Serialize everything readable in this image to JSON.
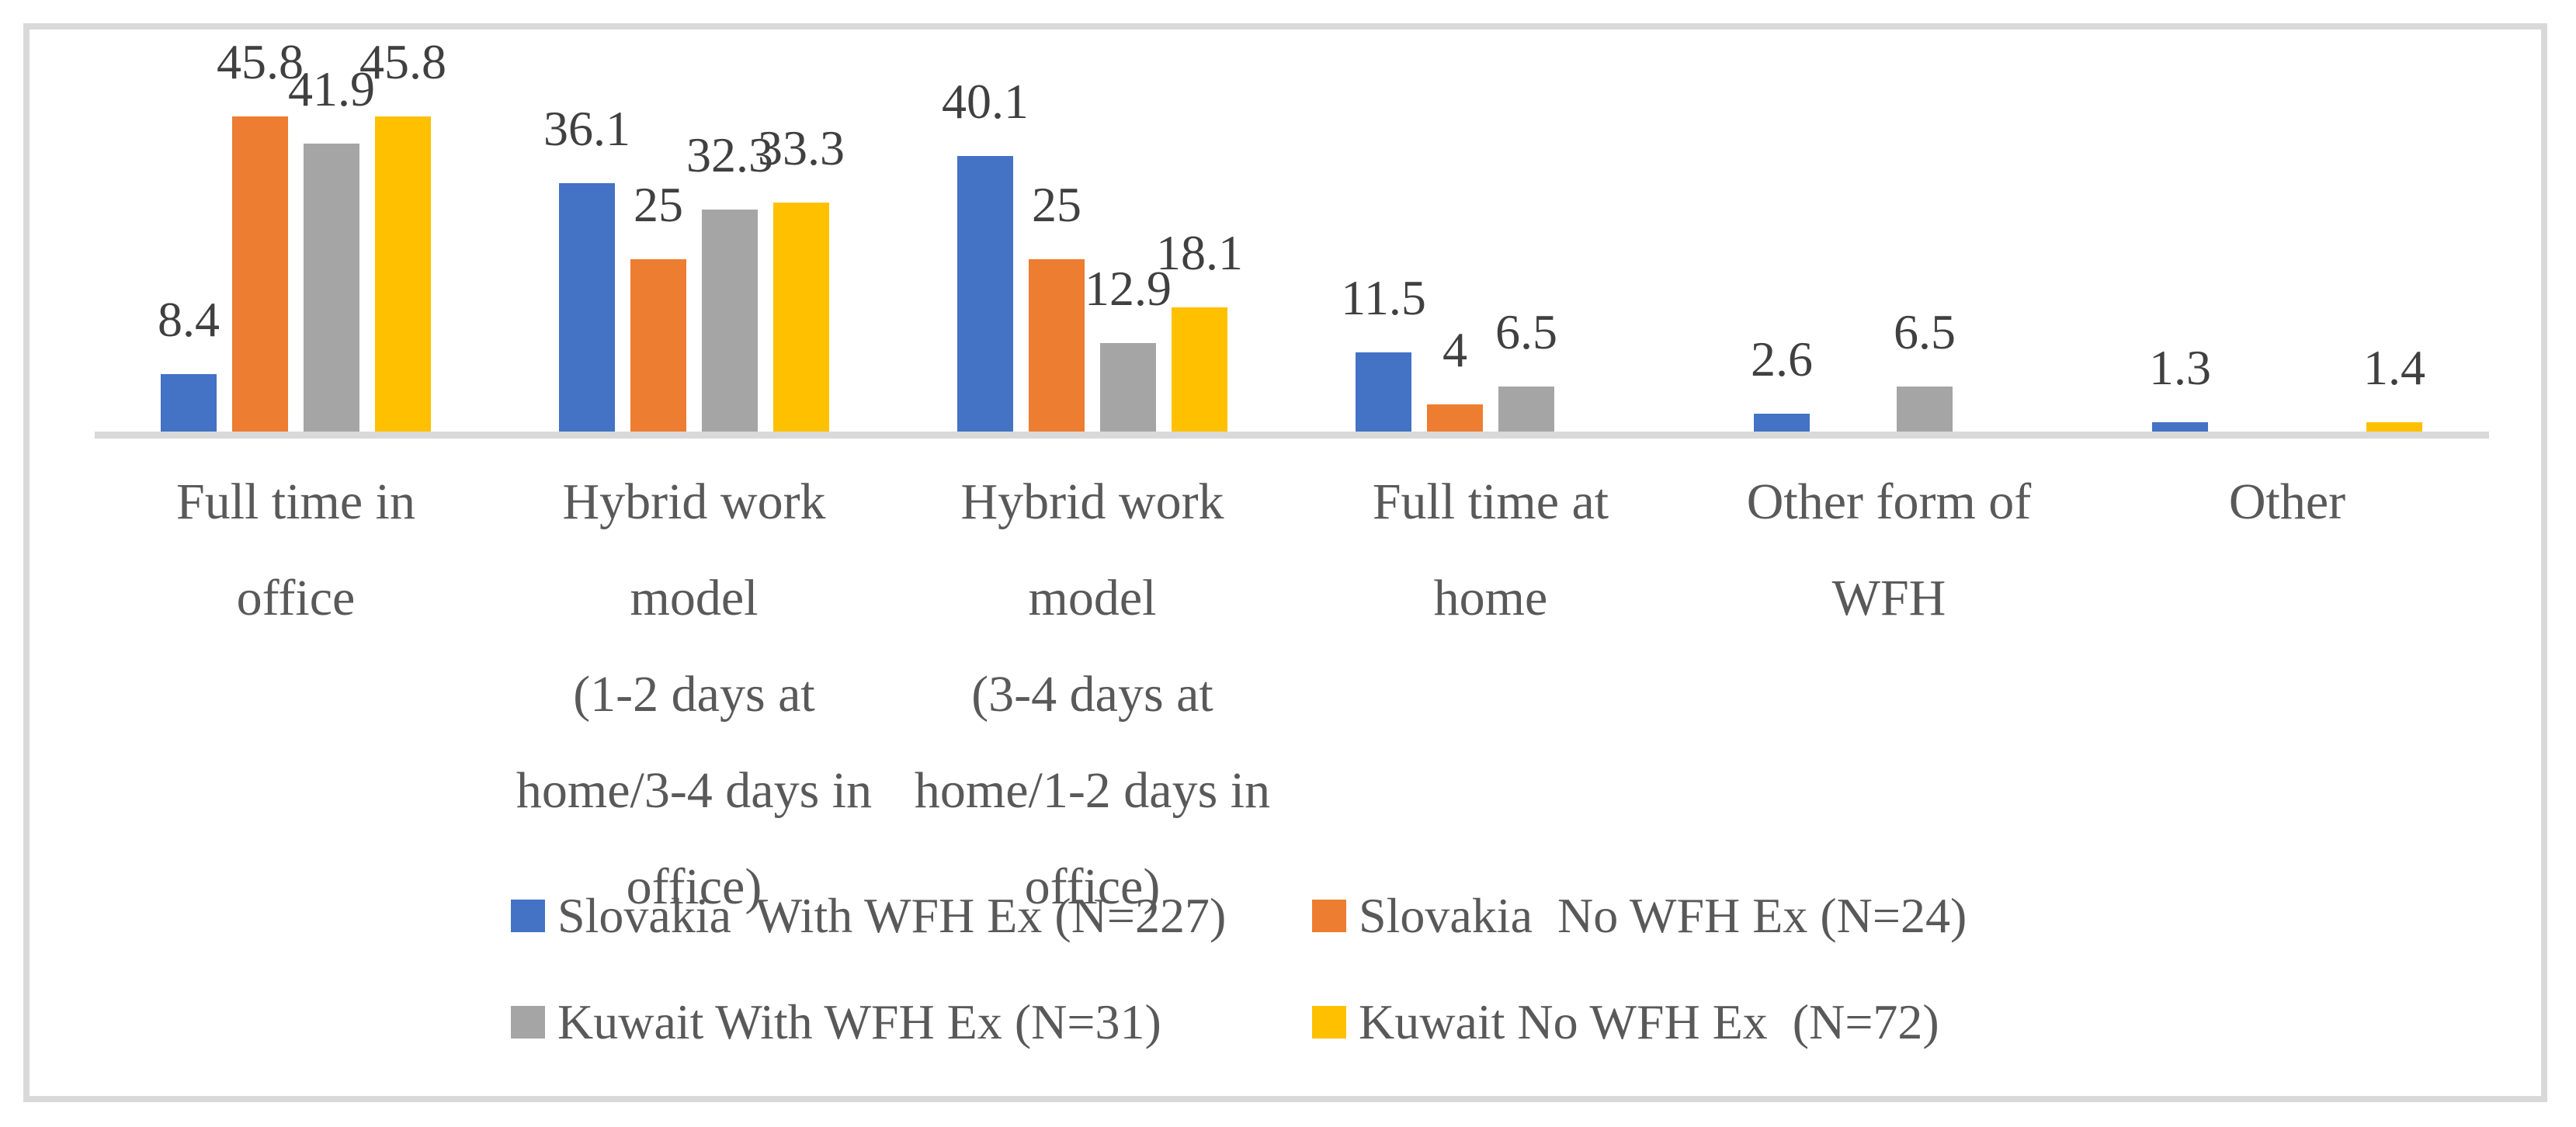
{
  "chart_data": {
    "type": "bar",
    "title": "",
    "xlabel": "",
    "ylabel": "",
    "ylim": [
      0,
      50
    ],
    "grid": false,
    "axis_visible": "x-only",
    "legend_position": "bottom",
    "value_labels": true,
    "categories": [
      "Full time in\noffice",
      "Hybrid work\nmodel\n(1-2 days at\nhome/3-4 days in\noffice)",
      "Hybrid work\nmodel\n(3-4 days at\nhome/1-2 days in\noffice)",
      "Full time at\nhome",
      "Other form of\nWFH",
      "Other"
    ],
    "series": [
      {
        "name": "Slovakia  With WFH Ex (N=227)",
        "color": "#4472C4",
        "values": [
          8.4,
          36.1,
          40.1,
          11.5,
          2.6,
          1.3
        ]
      },
      {
        "name": "Slovakia  No WFH Ex (N=24)",
        "color": "#ED7D31",
        "values": [
          45.8,
          25,
          25,
          4,
          null,
          null
        ]
      },
      {
        "name": "Kuwait With WFH Ex (N=31)",
        "color": "#A5A5A5",
        "values": [
          41.9,
          32.3,
          12.9,
          6.5,
          6.5,
          null
        ]
      },
      {
        "name": "Kuwait No WFH Ex  (N=72)",
        "color": "#FFC000",
        "values": [
          45.8,
          33.3,
          18.1,
          null,
          null,
          1.4
        ]
      }
    ],
    "colors": {
      "axis_line": "#D9D9D9",
      "frame_border": "#D9D9D9",
      "value_label_text": "#404040",
      "category_label_text": "#595959",
      "legend_text": "#595959",
      "background": "#FFFFFF"
    }
  }
}
